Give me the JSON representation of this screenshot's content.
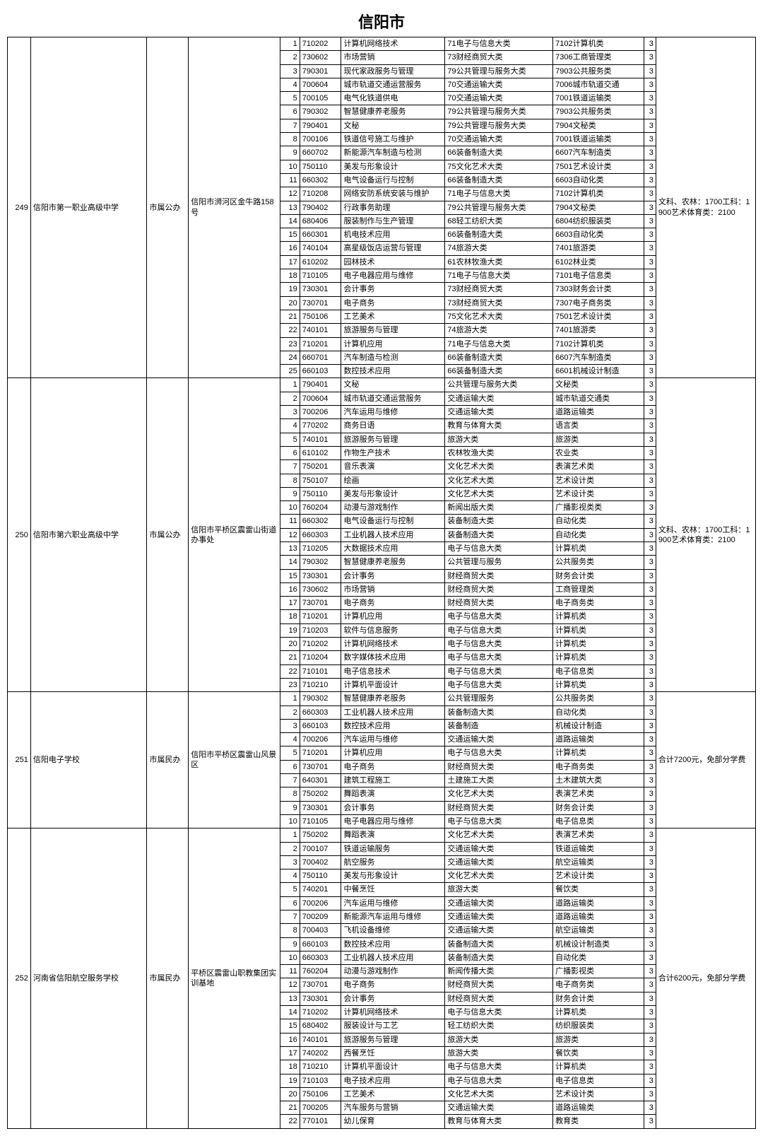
{
  "title": "信阳市",
  "schools": [
    {
      "id": "249",
      "name": "信阳市第一职业高级中学",
      "type": "市属公办",
      "address": "信阳市浉河区金牛路158号",
      "remark": "文科、农林：1700工科：1900艺术体育类：2100",
      "rows": [
        {
          "seq": "1",
          "code": "710202",
          "major": "计算机网络技术",
          "cat1": "71电子与信息大类",
          "cat2": "7102计算机类",
          "years": "3"
        },
        {
          "seq": "2",
          "code": "730602",
          "major": "市场营销",
          "cat1": "73财经商贸大类",
          "cat2": "7306工商管理类",
          "years": "3"
        },
        {
          "seq": "3",
          "code": "790301",
          "major": "现代家政服务与管理",
          "cat1": "79公共管理与服务大类",
          "cat2": "7903公共服务类",
          "years": "3"
        },
        {
          "seq": "4",
          "code": "700604",
          "major": "城市轨道交通运营服务",
          "cat1": "70交通运输大类",
          "cat2": "7006城市轨道交通",
          "years": "3"
        },
        {
          "seq": "5",
          "code": "700105",
          "major": "电气化铁道供电",
          "cat1": "70交通运输大类",
          "cat2": "7001铁道运输类",
          "years": "3"
        },
        {
          "seq": "6",
          "code": "790302",
          "major": "智慧健康养老服务",
          "cat1": "79公共管理与服务大类",
          "cat2": "7903公共服务类",
          "years": "3"
        },
        {
          "seq": "7",
          "code": "790401",
          "major": "文秘",
          "cat1": "79公共管理与服务大类",
          "cat2": "7904文秘类",
          "years": "3"
        },
        {
          "seq": "8",
          "code": "700106",
          "major": "铁道信号施工与维护",
          "cat1": "70交通运输大类",
          "cat2": "7001铁道运输类",
          "years": "3"
        },
        {
          "seq": "9",
          "code": "660702",
          "major": "新能源汽车制造与检测",
          "cat1": "66装备制造大类",
          "cat2": "6607汽车制造类",
          "years": "3"
        },
        {
          "seq": "10",
          "code": "750110",
          "major": "美发与形象设计",
          "cat1": "75文化艺术大类",
          "cat2": "7501艺术设计类",
          "years": "3"
        },
        {
          "seq": "11",
          "code": "660302",
          "major": "电气设备运行与控制",
          "cat1": "66装备制造大类",
          "cat2": "6603自动化类",
          "years": "3"
        },
        {
          "seq": "12",
          "code": "710208",
          "major": "网络安防系统安装与维护",
          "cat1": "71电子与信息大类",
          "cat2": "7102计算机类",
          "years": "3"
        },
        {
          "seq": "13",
          "code": "790402",
          "major": "行政事务助理",
          "cat1": "79公共管理与服务大类",
          "cat2": "7904文秘类",
          "years": "3"
        },
        {
          "seq": "14",
          "code": "680406",
          "major": "服装制作与生产管理",
          "cat1": "68轻工纺织大类",
          "cat2": "6804纺织服装类",
          "years": "3"
        },
        {
          "seq": "15",
          "code": "660301",
          "major": "机电技术应用",
          "cat1": "66装备制造大类",
          "cat2": "6603自动化类",
          "years": "3"
        },
        {
          "seq": "16",
          "code": "740104",
          "major": "高星级饭店运营与管理",
          "cat1": "74旅游大类",
          "cat2": "7401旅游类",
          "years": "3"
        },
        {
          "seq": "17",
          "code": "610202",
          "major": "园林技术",
          "cat1": "61农林牧渔大类",
          "cat2": "6102林业类",
          "years": "3"
        },
        {
          "seq": "18",
          "code": "710105",
          "major": "电子电器应用与维修",
          "cat1": "71电子与信息大类",
          "cat2": "7101电子信息类",
          "years": "3"
        },
        {
          "seq": "19",
          "code": "730301",
          "major": "会计事务",
          "cat1": "73财经商贸大类",
          "cat2": "7303财务会计类",
          "years": "3"
        },
        {
          "seq": "20",
          "code": "730701",
          "major": "电子商务",
          "cat1": "73财经商贸大类",
          "cat2": "7307电子商务类",
          "years": "3"
        },
        {
          "seq": "21",
          "code": "750106",
          "major": "工艺美术",
          "cat1": "75文化艺术大类",
          "cat2": "7501艺术设计类",
          "years": "3"
        },
        {
          "seq": "22",
          "code": "740101",
          "major": "旅游服务与管理",
          "cat1": "74旅游大类",
          "cat2": "7401旅游类",
          "years": "3"
        },
        {
          "seq": "23",
          "code": "710201",
          "major": "计算机应用",
          "cat1": "71电子与信息大类",
          "cat2": "7102计算机类",
          "years": "3"
        },
        {
          "seq": "24",
          "code": "660701",
          "major": "汽车制造与检测",
          "cat1": "66装备制造大类",
          "cat2": "6607汽车制造类",
          "years": "3"
        },
        {
          "seq": "25",
          "code": "660103",
          "major": "数控技术应用",
          "cat1": "66装备制造大类",
          "cat2": "6601机械设计制造",
          "years": "3"
        }
      ]
    },
    {
      "id": "250",
      "name": "信阳市第六职业高级中学",
      "type": "市属公办",
      "address": "信阳市平桥区震雷山街道办事处",
      "remark": "文科、农林：1700工科：1900艺术体育类：2100",
      "rows": [
        {
          "seq": "1",
          "code": "790401",
          "major": "文秘",
          "cat1": "公共管理与服务大类",
          "cat2": "文秘类",
          "years": "3"
        },
        {
          "seq": "2",
          "code": "700604",
          "major": "城市轨道交通运营服务",
          "cat1": "交通运输大类",
          "cat2": "城市轨道交通类",
          "years": "3"
        },
        {
          "seq": "3",
          "code": "700206",
          "major": "汽车运用与维修",
          "cat1": "交通运输大类",
          "cat2": "道路运输类",
          "years": "3"
        },
        {
          "seq": "4",
          "code": "770202",
          "major": "商务日语",
          "cat1": "教育与体育大类",
          "cat2": "语言类",
          "years": "3"
        },
        {
          "seq": "5",
          "code": "740101",
          "major": "旅游服务与管理",
          "cat1": "旅游大类",
          "cat2": "旅游类",
          "years": "3"
        },
        {
          "seq": "6",
          "code": "610102",
          "major": "作物生产技术",
          "cat1": "农林牧渔大类",
          "cat2": "农业类",
          "years": "3"
        },
        {
          "seq": "7",
          "code": "750201",
          "major": "音乐表演",
          "cat1": "文化艺术大类",
          "cat2": "表演艺术类",
          "years": "3"
        },
        {
          "seq": "8",
          "code": "750107",
          "major": "绘画",
          "cat1": "文化艺术大类",
          "cat2": "艺术设计类",
          "years": "3"
        },
        {
          "seq": "9",
          "code": "750110",
          "major": "美发与形象设计",
          "cat1": "文化艺术大类",
          "cat2": "艺术设计类",
          "years": "3"
        },
        {
          "seq": "10",
          "code": "760204",
          "major": "动漫与游戏制作",
          "cat1": "新闻出版大类",
          "cat2": "广播影视类类",
          "years": "3"
        },
        {
          "seq": "11",
          "code": "660302",
          "major": "电气设备运行与控制",
          "cat1": "装备制造大类",
          "cat2": "自动化类",
          "years": "3"
        },
        {
          "seq": "12",
          "code": "660303",
          "major": "工业机器人技术应用",
          "cat1": "装备制造大类",
          "cat2": "自动化类",
          "years": "3"
        },
        {
          "seq": "13",
          "code": "710205",
          "major": "大数据技术应用",
          "cat1": "电子与信息大类",
          "cat2": "计算机类",
          "years": "3"
        },
        {
          "seq": "14",
          "code": "790302",
          "major": "智慧健康养老服务",
          "cat1": "公共管理与服务",
          "cat2": "公共服务类",
          "years": "3"
        },
        {
          "seq": "15",
          "code": "730301",
          "major": "会计事务",
          "cat1": "财经商贸大类",
          "cat2": "财务会计类",
          "years": "3"
        },
        {
          "seq": "16",
          "code": "730602",
          "major": "市场营销",
          "cat1": "财经商贸大类",
          "cat2": "工商管理类",
          "years": "3"
        },
        {
          "seq": "17",
          "code": "730701",
          "major": "电子商务",
          "cat1": "财经商贸大类",
          "cat2": "电子商务类",
          "years": "3"
        },
        {
          "seq": "18",
          "code": "710201",
          "major": "计算机应用",
          "cat1": "电子与信息大类",
          "cat2": "计算机类",
          "years": "3"
        },
        {
          "seq": "19",
          "code": "710203",
          "major": "软件与信息服务",
          "cat1": "电子与信息大类",
          "cat2": "计算机类",
          "years": "3"
        },
        {
          "seq": "20",
          "code": "710202",
          "major": "计算机网络技术",
          "cat1": "电子与信息大类",
          "cat2": "计算机类",
          "years": "3"
        },
        {
          "seq": "21",
          "code": "710204",
          "major": "数字媒体技术应用",
          "cat1": "电子与信息大类",
          "cat2": "计算机类",
          "years": "3"
        },
        {
          "seq": "22",
          "code": "710101",
          "major": "电子信息技术",
          "cat1": "电子与信息大类",
          "cat2": "电子信息类",
          "years": "3"
        },
        {
          "seq": "23",
          "code": "710210",
          "major": "计算机平面设计",
          "cat1": "电子与信息大类",
          "cat2": "计算机类",
          "years": "3"
        }
      ]
    },
    {
      "id": "251",
      "name": "信阳电子学校",
      "type": "市属民办",
      "address": "信阳市平桥区震雷山风景区",
      "remark": "合计7200元，免部分学费",
      "rows": [
        {
          "seq": "1",
          "code": "790302",
          "major": "智慧健康养老服务",
          "cat1": "公共管理服务",
          "cat2": "公共服务类",
          "years": "3"
        },
        {
          "seq": "2",
          "code": "660303",
          "major": "工业机器人技术应用",
          "cat1": "装备制造大类",
          "cat2": "自动化类",
          "years": "3"
        },
        {
          "seq": "3",
          "code": "660103",
          "major": "数控技术应用",
          "cat1": "装备制造",
          "cat2": "机械设计制造",
          "years": "3"
        },
        {
          "seq": "4",
          "code": "700206",
          "major": "汽车运用与维修",
          "cat1": "交通运输大类",
          "cat2": "道路运输类",
          "years": "3"
        },
        {
          "seq": "5",
          "code": "710201",
          "major": "计算机应用",
          "cat1": "电子与信息大类",
          "cat2": "计算机类",
          "years": "3"
        },
        {
          "seq": "6",
          "code": "730701",
          "major": "电子商务",
          "cat1": "财经商贸大类",
          "cat2": "电子商务类",
          "years": "3"
        },
        {
          "seq": "7",
          "code": "640301",
          "major": "建筑工程施工",
          "cat1": "土建施工大类",
          "cat2": "土木建筑大类",
          "years": "3"
        },
        {
          "seq": "8",
          "code": "750202",
          "major": "舞蹈表演",
          "cat1": "文化艺术大类",
          "cat2": "表演艺术类",
          "years": "3"
        },
        {
          "seq": "9",
          "code": "730301",
          "major": "会计事务",
          "cat1": "财经商贸大类",
          "cat2": "财务会计类",
          "years": "3"
        },
        {
          "seq": "10",
          "code": "710105",
          "major": "电子电器应用与维修",
          "cat1": "电子与信息大类",
          "cat2": "电子信息类",
          "years": "3"
        }
      ]
    },
    {
      "id": "252",
      "name": "河南省信阳航空服务学校",
      "type": "市属民办",
      "address": "平桥区震雷山职教集团实训基地",
      "remark": "合计6200元，免部分学费",
      "rows": [
        {
          "seq": "1",
          "code": "750202",
          "major": "舞蹈表演",
          "cat1": "文化艺术大类",
          "cat2": "表演艺术类",
          "years": "3"
        },
        {
          "seq": "2",
          "code": "700107",
          "major": "铁道运输服务",
          "cat1": "交通运输大类",
          "cat2": "铁道运输类",
          "years": "3"
        },
        {
          "seq": "3",
          "code": "700402",
          "major": "航空服务",
          "cat1": "交通运输大类",
          "cat2": "航空运输类",
          "years": "3"
        },
        {
          "seq": "4",
          "code": "750110",
          "major": "美发与形象设计",
          "cat1": "文化艺术大类",
          "cat2": "艺术设计类",
          "years": "3"
        },
        {
          "seq": "5",
          "code": "740201",
          "major": "中餐烹饪",
          "cat1": "旅游大类",
          "cat2": "餐饮类",
          "years": "3"
        },
        {
          "seq": "6",
          "code": "700206",
          "major": "汽车运用与维修",
          "cat1": "交通运输大类",
          "cat2": "道路运输类",
          "years": "3"
        },
        {
          "seq": "7",
          "code": "700209",
          "major": "新能源汽车运用与维修",
          "cat1": "交通运输大类",
          "cat2": "道路运输类",
          "years": "3"
        },
        {
          "seq": "8",
          "code": "700403",
          "major": "飞机设备维修",
          "cat1": "交通运输大类",
          "cat2": "航空运输类",
          "years": "3"
        },
        {
          "seq": "9",
          "code": "660103",
          "major": "数控技术应用",
          "cat1": "装备制造大类",
          "cat2": "机械设计制造类",
          "years": "3"
        },
        {
          "seq": "10",
          "code": "660303",
          "major": "工业机器人技术应用",
          "cat1": "装备制造大类",
          "cat2": "自动化类",
          "years": "3"
        },
        {
          "seq": "11",
          "code": "760204",
          "major": "动漫与游戏制作",
          "cat1": "新闻传播大类",
          "cat2": "广播影视类",
          "years": "3"
        },
        {
          "seq": "12",
          "code": "730701",
          "major": "电子商务",
          "cat1": "财经商贸大类",
          "cat2": "电子商务类",
          "years": "3"
        },
        {
          "seq": "13",
          "code": "730301",
          "major": "会计事务",
          "cat1": "财经商贸大类",
          "cat2": "财务会计类",
          "years": "3"
        },
        {
          "seq": "14",
          "code": "710202",
          "major": "计算机网络技术",
          "cat1": "电子与信息大类",
          "cat2": "计算机类",
          "years": "3"
        },
        {
          "seq": "15",
          "code": "680402",
          "major": "服装设计与工艺",
          "cat1": "轻工纺织大类",
          "cat2": "纺织服装类",
          "years": "3"
        },
        {
          "seq": "16",
          "code": "740101",
          "major": "旅游服务与管理",
          "cat1": "旅游大类",
          "cat2": "旅游类",
          "years": "3"
        },
        {
          "seq": "17",
          "code": "740202",
          "major": "西餐烹饪",
          "cat1": "旅游大类",
          "cat2": "餐饮类",
          "years": "3"
        },
        {
          "seq": "18",
          "code": "710210",
          "major": "计算机平面设计",
          "cat1": "电子与信息大类",
          "cat2": "计算机类",
          "years": "3"
        },
        {
          "seq": "19",
          "code": "710103",
          "major": "电子技术应用",
          "cat1": "电子与信息大类",
          "cat2": "电子信息类",
          "years": "3"
        },
        {
          "seq": "20",
          "code": "750106",
          "major": "工艺美术",
          "cat1": "文化艺术大类",
          "cat2": "艺术设计类",
          "years": "3"
        },
        {
          "seq": "21",
          "code": "700205",
          "major": "汽车服务与营销",
          "cat1": "交通运输大类",
          "cat2": "道路运输类",
          "years": "3"
        },
        {
          "seq": "22",
          "code": "770101",
          "major": "幼儿保育",
          "cat1": "教育与体育大类",
          "cat2": "教育类",
          "years": "3"
        }
      ]
    }
  ]
}
